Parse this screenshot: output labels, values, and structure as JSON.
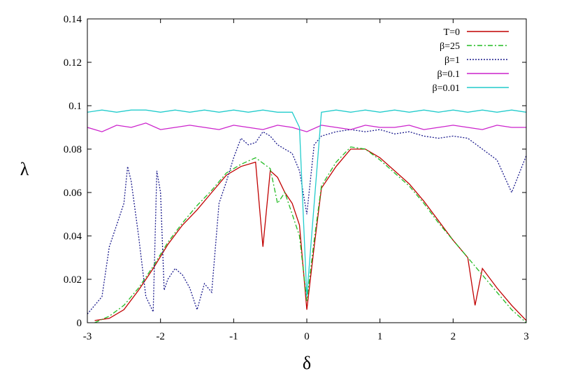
{
  "chart_data": {
    "type": "line",
    "xlabel": "δ",
    "ylabel": "λ",
    "xlim": [
      -3,
      3
    ],
    "ylim": [
      0,
      0.14
    ],
    "xticks": [
      -3,
      -2,
      -1,
      0,
      1,
      2,
      3
    ],
    "yticks": [
      0,
      0.02,
      0.04,
      0.06,
      0.08,
      0.1,
      0.12,
      0.14
    ],
    "xtick_labels": [
      "-3",
      "-2",
      "-1",
      "0",
      "1",
      "2",
      "3"
    ],
    "ytick_labels": [
      "0",
      "0.02",
      "0.04",
      "0.06",
      "0.08",
      "0.1",
      "0.12",
      "0.14"
    ],
    "grid": false,
    "legend_position": "top-right",
    "series": [
      {
        "name": "T=0",
        "color": "#c00000",
        "dash": "solid",
        "x": [
          -2.9,
          -2.7,
          -2.5,
          -2.3,
          -2.1,
          -1.9,
          -1.7,
          -1.5,
          -1.3,
          -1.1,
          -0.9,
          -0.7,
          -0.6,
          -0.5,
          -0.4,
          -0.3,
          -0.2,
          -0.1,
          0.0,
          0.1,
          0.2,
          0.4,
          0.6,
          0.8,
          1.0,
          1.2,
          1.4,
          1.6,
          1.8,
          2.0,
          2.2,
          2.3,
          2.4,
          2.6,
          2.8,
          3.0
        ],
        "y": [
          0.001,
          0.002,
          0.006,
          0.015,
          0.025,
          0.036,
          0.045,
          0.052,
          0.06,
          0.068,
          0.072,
          0.074,
          0.035,
          0.07,
          0.067,
          0.06,
          0.055,
          0.045,
          0.006,
          0.035,
          0.062,
          0.072,
          0.08,
          0.08,
          0.076,
          0.07,
          0.064,
          0.056,
          0.047,
          0.038,
          0.03,
          0.008,
          0.025,
          0.016,
          0.008,
          0.001
        ]
      },
      {
        "name": "β=25",
        "color": "#22bb22",
        "dash": "dashdot",
        "x": [
          -2.9,
          -2.7,
          -2.5,
          -2.3,
          -2.1,
          -1.9,
          -1.7,
          -1.5,
          -1.3,
          -1.1,
          -0.9,
          -0.7,
          -0.5,
          -0.4,
          -0.3,
          -0.2,
          -0.1,
          0.0,
          0.1,
          0.2,
          0.4,
          0.6,
          0.8,
          1.0,
          1.2,
          1.4,
          1.6,
          1.8,
          2.0,
          2.2,
          2.4,
          2.6,
          2.8,
          3.0
        ],
        "y": [
          0.0,
          0.003,
          0.008,
          0.016,
          0.026,
          0.037,
          0.046,
          0.054,
          0.061,
          0.069,
          0.073,
          0.076,
          0.071,
          0.055,
          0.06,
          0.05,
          0.04,
          0.01,
          0.038,
          0.063,
          0.074,
          0.081,
          0.08,
          0.075,
          0.069,
          0.063,
          0.055,
          0.046,
          0.038,
          0.03,
          0.022,
          0.014,
          0.006,
          0.0
        ]
      },
      {
        "name": "β=1",
        "color": "#1a1a8c",
        "dash": "dotted",
        "x": [
          -3.0,
          -2.8,
          -2.7,
          -2.6,
          -2.5,
          -2.45,
          -2.4,
          -2.3,
          -2.2,
          -2.1,
          -2.05,
          -2.0,
          -1.95,
          -1.9,
          -1.8,
          -1.7,
          -1.6,
          -1.5,
          -1.4,
          -1.3,
          -1.2,
          -1.1,
          -1.0,
          -0.9,
          -0.8,
          -0.7,
          -0.6,
          -0.5,
          -0.4,
          -0.3,
          -0.2,
          -0.1,
          0.0,
          0.1,
          0.2,
          0.4,
          0.6,
          0.8,
          1.0,
          1.2,
          1.4,
          1.6,
          1.8,
          2.0,
          2.2,
          2.4,
          2.6,
          2.8,
          3.0
        ],
        "y": [
          0.004,
          0.012,
          0.035,
          0.045,
          0.055,
          0.072,
          0.065,
          0.04,
          0.012,
          0.005,
          0.07,
          0.06,
          0.015,
          0.02,
          0.025,
          0.022,
          0.016,
          0.006,
          0.018,
          0.014,
          0.055,
          0.065,
          0.076,
          0.085,
          0.082,
          0.083,
          0.088,
          0.086,
          0.082,
          0.08,
          0.078,
          0.07,
          0.05,
          0.082,
          0.086,
          0.088,
          0.089,
          0.088,
          0.089,
          0.087,
          0.088,
          0.086,
          0.085,
          0.086,
          0.085,
          0.08,
          0.075,
          0.06,
          0.077
        ]
      },
      {
        "name": "β=0.1",
        "color": "#cc22cc",
        "dash": "solid",
        "x": [
          -3.0,
          -2.8,
          -2.6,
          -2.4,
          -2.2,
          -2.0,
          -1.8,
          -1.6,
          -1.4,
          -1.2,
          -1.0,
          -0.8,
          -0.6,
          -0.4,
          -0.2,
          0.0,
          0.2,
          0.4,
          0.6,
          0.8,
          1.0,
          1.2,
          1.4,
          1.6,
          1.8,
          2.0,
          2.2,
          2.4,
          2.6,
          2.8,
          3.0
        ],
        "y": [
          0.09,
          0.088,
          0.091,
          0.09,
          0.092,
          0.089,
          0.09,
          0.091,
          0.09,
          0.089,
          0.091,
          0.09,
          0.089,
          0.091,
          0.09,
          0.088,
          0.091,
          0.09,
          0.089,
          0.091,
          0.09,
          0.09,
          0.091,
          0.089,
          0.09,
          0.091,
          0.09,
          0.089,
          0.091,
          0.09,
          0.09
        ]
      },
      {
        "name": "β=0.01",
        "color": "#22cccc",
        "dash": "solid",
        "x": [
          -3.0,
          -2.8,
          -2.6,
          -2.4,
          -2.2,
          -2.0,
          -1.8,
          -1.6,
          -1.4,
          -1.2,
          -1.0,
          -0.8,
          -0.6,
          -0.4,
          -0.2,
          -0.1,
          0.0,
          0.2,
          0.4,
          0.6,
          0.8,
          1.0,
          1.2,
          1.4,
          1.6,
          1.8,
          2.0,
          2.2,
          2.4,
          2.6,
          2.8,
          3.0
        ],
        "y": [
          0.097,
          0.098,
          0.097,
          0.098,
          0.098,
          0.097,
          0.098,
          0.097,
          0.098,
          0.097,
          0.098,
          0.097,
          0.098,
          0.097,
          0.097,
          0.09,
          0.012,
          0.097,
          0.098,
          0.097,
          0.098,
          0.097,
          0.098,
          0.097,
          0.098,
          0.097,
          0.098,
          0.097,
          0.098,
          0.097,
          0.098,
          0.097
        ]
      }
    ]
  }
}
